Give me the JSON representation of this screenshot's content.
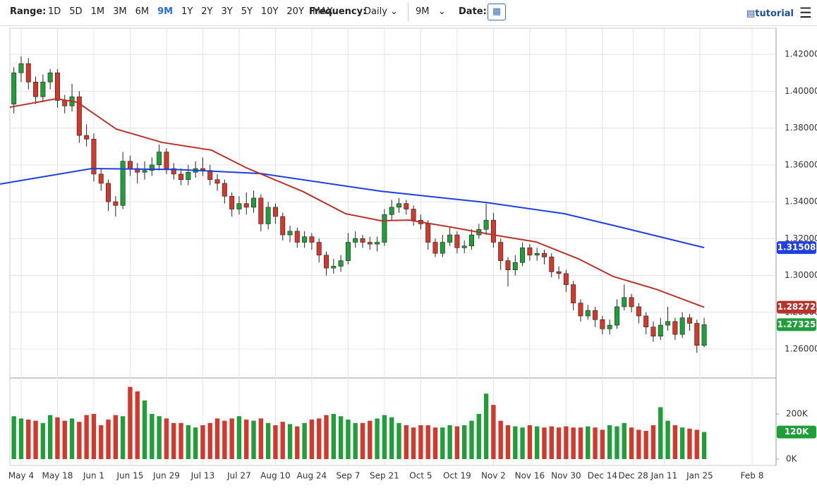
{
  "toolbar": {
    "range_label": "Range:",
    "ranges": [
      "1D",
      "5D",
      "1M",
      "3M",
      "6M",
      "9M",
      "1Y",
      "2Y",
      "3Y",
      "5Y",
      "10Y",
      "20Y",
      "MAX"
    ],
    "active_range": "9M",
    "frequency_label": "Frequency:",
    "frequency": "Daily",
    "period": "9M",
    "date_label": "Date:",
    "tutorial": "tutorial"
  },
  "chart_data": {
    "type": "candlestick",
    "up_color": "#1f9e3a",
    "down_color": "#d2392c",
    "grid": true,
    "xlim": [
      -3.1,
      207.8
    ],
    "xticks": [
      {
        "value": 0,
        "label": "May 4"
      },
      {
        "value": 10,
        "label": "May 18"
      },
      {
        "value": 20,
        "label": "Jun 1"
      },
      {
        "value": 30,
        "label": "Jun 15"
      },
      {
        "value": 40,
        "label": "Jun 29"
      },
      {
        "value": 50,
        "label": "Jul 13"
      },
      {
        "value": 60,
        "label": "Jul 27"
      },
      {
        "value": 70,
        "label": "Aug 10"
      },
      {
        "value": 80,
        "label": "Aug 24"
      },
      {
        "value": 90,
        "label": "Sep 7"
      },
      {
        "value": 100,
        "label": "Sep 21"
      },
      {
        "value": 110,
        "label": "Oct 5"
      },
      {
        "value": 120,
        "label": "Oct 19"
      },
      {
        "value": 130,
        "label": "Nov 2"
      },
      {
        "value": 140,
        "label": "Nov 16"
      },
      {
        "value": 150,
        "label": "Nov 30"
      },
      {
        "value": 160,
        "label": "Dec 14"
      },
      {
        "value": 168.5,
        "label": "Dec 28"
      },
      {
        "value": 177,
        "label": "Jan 11"
      },
      {
        "value": 186.8,
        "label": "Jan 25"
      },
      {
        "value": 201.2,
        "label": "Feb 8"
      }
    ],
    "ylim": [
      1.2447,
      1.4342
    ],
    "yticks": [
      {
        "value": 1.26,
        "label": "1.26000"
      },
      {
        "value": 1.28,
        "label": "1.28000"
      },
      {
        "value": 1.3,
        "label": "1.30000"
      },
      {
        "value": 1.32,
        "label": "1.32000"
      },
      {
        "value": 1.34,
        "label": "1.34000"
      },
      {
        "value": 1.36,
        "label": "1.36000"
      },
      {
        "value": 1.38,
        "label": "1.38000"
      },
      {
        "value": 1.4,
        "label": "1.40000"
      },
      {
        "value": 1.42,
        "label": "1.42000"
      }
    ],
    "x": [
      -2,
      0,
      2,
      4,
      6,
      8,
      10,
      12,
      14,
      16,
      18,
      20,
      22,
      24,
      26,
      28,
      30,
      32,
      34,
      36,
      38,
      40,
      42,
      44,
      46,
      48,
      50,
      52,
      54,
      56,
      58,
      60,
      62,
      64,
      66,
      68,
      70,
      72,
      74,
      76,
      78,
      80,
      82,
      84,
      86,
      88,
      90,
      92,
      94,
      96,
      98,
      100,
      102,
      104,
      106,
      108,
      110,
      112,
      114,
      116,
      118,
      120,
      122,
      124,
      126,
      128,
      130,
      132,
      134,
      136,
      138,
      140,
      142,
      144,
      146,
      148,
      150,
      152,
      154,
      156,
      158,
      160,
      162,
      164,
      166,
      168,
      170,
      172,
      174,
      176,
      178,
      180,
      182,
      184,
      186,
      188
    ],
    "open": [
      1.393,
      1.41,
      1.415,
      1.405,
      1.397,
      1.405,
      1.41,
      1.395,
      1.392,
      1.397,
      1.376,
      1.374,
      1.355,
      1.35,
      1.34,
      1.338,
      1.362,
      1.358,
      1.356,
      1.357,
      1.36,
      1.367,
      1.358,
      1.355,
      1.352,
      1.356,
      1.358,
      1.357,
      1.352,
      1.35,
      1.343,
      1.336,
      1.339,
      1.337,
      1.342,
      1.328,
      1.337,
      1.332,
      1.322,
      1.324,
      1.318,
      1.321,
      1.318,
      1.311,
      1.304,
      1.305,
      1.308,
      1.318,
      1.32,
      1.318,
      1.317,
      1.318,
      1.333,
      1.337,
      1.339,
      1.336,
      1.33,
      1.328,
      1.318,
      1.312,
      1.318,
      1.322,
      1.315,
      1.316,
      1.322,
      1.325,
      1.33,
      1.318,
      1.308,
      1.303,
      1.307,
      1.315,
      1.311,
      1.312,
      1.31,
      1.302,
      1.301,
      1.295,
      1.285,
      1.278,
      1.281,
      1.276,
      1.271,
      1.273,
      1.283,
      1.288,
      1.283,
      1.278,
      1.272,
      1.267,
      1.273,
      1.275,
      1.268,
      1.277,
      1.274,
      1.262
    ],
    "high": [
      1.413,
      1.419,
      1.418,
      1.408,
      1.409,
      1.412,
      1.412,
      1.398,
      1.404,
      1.4,
      1.382,
      1.377,
      1.358,
      1.352,
      1.343,
      1.367,
      1.365,
      1.361,
      1.362,
      1.364,
      1.371,
      1.369,
      1.361,
      1.358,
      1.36,
      1.362,
      1.364,
      1.36,
      1.355,
      1.352,
      1.345,
      1.343,
      1.345,
      1.346,
      1.344,
      1.34,
      1.339,
      1.334,
      1.327,
      1.326,
      1.324,
      1.323,
      1.32,
      1.313,
      1.309,
      1.311,
      1.323,
      1.324,
      1.322,
      1.321,
      1.321,
      1.336,
      1.341,
      1.342,
      1.341,
      1.338,
      1.333,
      1.33,
      1.32,
      1.322,
      1.326,
      1.324,
      1.319,
      1.325,
      1.328,
      1.339,
      1.334,
      1.32,
      1.31,
      1.311,
      1.318,
      1.317,
      1.315,
      1.314,
      1.312,
      1.305,
      1.303,
      1.297,
      1.287,
      1.284,
      1.283,
      1.278,
      1.276,
      1.287,
      1.295,
      1.29,
      1.285,
      1.28,
      1.275,
      1.277,
      1.283,
      1.277,
      1.28,
      1.279,
      1.276,
      1.277
    ],
    "low": [
      1.388,
      1.405,
      1.401,
      1.393,
      1.394,
      1.401,
      1.391,
      1.388,
      1.389,
      1.372,
      1.37,
      1.351,
      1.346,
      1.335,
      1.332,
      1.336,
      1.354,
      1.35,
      1.352,
      1.354,
      1.357,
      1.355,
      1.352,
      1.349,
      1.349,
      1.353,
      1.354,
      1.349,
      1.346,
      1.339,
      1.332,
      1.333,
      1.333,
      1.334,
      1.324,
      1.325,
      1.328,
      1.319,
      1.318,
      1.315,
      1.315,
      1.314,
      1.307,
      1.3,
      1.301,
      1.302,
      1.306,
      1.315,
      1.315,
      1.314,
      1.313,
      1.316,
      1.33,
      1.334,
      1.333,
      1.327,
      1.325,
      1.314,
      1.31,
      1.31,
      1.316,
      1.312,
      1.312,
      1.314,
      1.32,
      1.322,
      1.315,
      1.303,
      1.294,
      1.3,
      1.305,
      1.308,
      1.308,
      1.306,
      1.299,
      1.298,
      1.291,
      1.281,
      1.275,
      1.276,
      1.272,
      1.268,
      1.268,
      1.271,
      1.281,
      1.28,
      1.274,
      1.268,
      1.264,
      1.265,
      1.27,
      1.265,
      1.266,
      1.27,
      1.258,
      1.261
    ],
    "close": [
      1.41,
      1.415,
      1.405,
      1.397,
      1.405,
      1.41,
      1.395,
      1.392,
      1.397,
      1.376,
      1.374,
      1.355,
      1.35,
      1.34,
      1.338,
      1.362,
      1.358,
      1.356,
      1.357,
      1.36,
      1.367,
      1.358,
      1.355,
      1.352,
      1.356,
      1.358,
      1.357,
      1.352,
      1.35,
      1.343,
      1.336,
      1.339,
      1.337,
      1.342,
      1.328,
      1.337,
      1.332,
      1.322,
      1.324,
      1.318,
      1.321,
      1.318,
      1.311,
      1.304,
      1.305,
      1.308,
      1.318,
      1.32,
      1.318,
      1.317,
      1.318,
      1.333,
      1.337,
      1.339,
      1.336,
      1.33,
      1.328,
      1.318,
      1.312,
      1.318,
      1.322,
      1.315,
      1.316,
      1.322,
      1.325,
      1.33,
      1.318,
      1.308,
      1.303,
      1.307,
      1.315,
      1.311,
      1.312,
      1.31,
      1.302,
      1.301,
      1.295,
      1.285,
      1.278,
      1.281,
      1.276,
      1.271,
      1.273,
      1.283,
      1.288,
      1.283,
      1.278,
      1.272,
      1.267,
      1.273,
      1.275,
      1.268,
      1.277,
      1.274,
      1.262,
      1.27325
    ],
    "series": [
      {
        "color": "#1f3fe0",
        "x": [
          -5.8,
          19.4,
          42.7,
          66,
          99,
          128,
          149.5,
          165,
          188
        ],
        "values": [
          1.3496,
          1.358,
          1.3575,
          1.3553,
          1.3457,
          1.3396,
          1.3335,
          1.3262,
          1.31508
        ]
      },
      {
        "color": "#b8332b",
        "x": [
          -3.1,
          9.7,
          15.5,
          26.2,
          38.8,
          52.4,
          62,
          77.7,
          89.3,
          99,
          106.8,
          118.4,
          130,
          141.7,
          153.4,
          163,
          174.8,
          188
        ],
        "values": [
          1.3913,
          1.3959,
          1.394,
          1.3794,
          1.3722,
          1.368,
          1.3584,
          1.3454,
          1.3335,
          1.3297,
          1.33,
          1.3262,
          1.322,
          1.3182,
          1.309,
          1.2994,
          1.2925,
          1.28272
        ]
      }
    ],
    "volume": [
      190000,
      180000,
      175000,
      170000,
      160000,
      195000,
      185000,
      170000,
      180000,
      165000,
      195000,
      200000,
      150000,
      175000,
      195000,
      190000,
      320000,
      300000,
      260000,
      200000,
      190000,
      180000,
      160000,
      160000,
      150000,
      140000,
      150000,
      160000,
      180000,
      170000,
      180000,
      190000,
      175000,
      170000,
      180000,
      160000,
      150000,
      165000,
      155000,
      145000,
      160000,
      175000,
      180000,
      195000,
      200000,
      190000,
      175000,
      160000,
      160000,
      170000,
      180000,
      195000,
      185000,
      160000,
      150000,
      140000,
      150000,
      150000,
      140000,
      140000,
      150000,
      145000,
      150000,
      170000,
      200000,
      290000,
      240000,
      170000,
      150000,
      145000,
      140000,
      150000,
      145000,
      140000,
      145000,
      140000,
      145000,
      140000,
      140000,
      145000,
      140000,
      130000,
      150000,
      145000,
      160000,
      140000,
      130000,
      125000,
      150000,
      230000,
      170000,
      150000,
      140000,
      135000,
      130000,
      120000
    ],
    "volume_last_label": "120K",
    "volume_ylim": [
      -28125,
      356250
    ],
    "volume_ticks": [
      {
        "value": 0,
        "label": "0K"
      },
      {
        "value": 200000,
        "label": "200K"
      }
    ]
  }
}
